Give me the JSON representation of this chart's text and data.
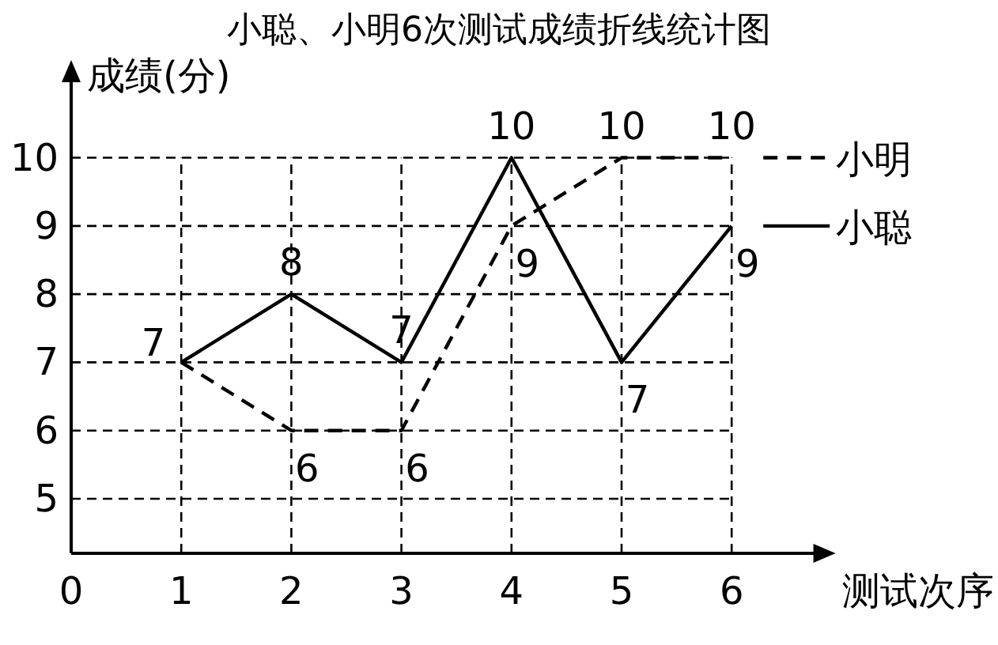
{
  "chart_data": {
    "type": "line",
    "title": "小聪、小明6次测试成绩折线统计图",
    "xlabel": "测试次序",
    "ylabel": "成绩(分)",
    "x": [
      1,
      2,
      3,
      4,
      5,
      6
    ],
    "series": [
      {
        "name": "小明",
        "color": "#000000",
        "line_style": "dashed",
        "values": [
          7,
          6,
          6,
          9,
          10,
          10
        ],
        "value_labels": [
          "7",
          "6",
          "6",
          "9",
          "10",
          "10"
        ]
      },
      {
        "name": "小聪",
        "color": "#000000",
        "line_style": "solid",
        "values": [
          7,
          8,
          7,
          10,
          7,
          9
        ],
        "value_labels": [
          null,
          "8",
          "7",
          "10",
          "7",
          "9"
        ]
      }
    ],
    "xlim": [
      0,
      6.8
    ],
    "ylim": [
      4.2,
      11.2
    ],
    "xticks": [
      0,
      1,
      2,
      3,
      4,
      5,
      6
    ],
    "yticks": [
      5,
      6,
      7,
      8,
      9,
      10
    ],
    "grid": true,
    "legend": "right",
    "marker": "none"
  }
}
